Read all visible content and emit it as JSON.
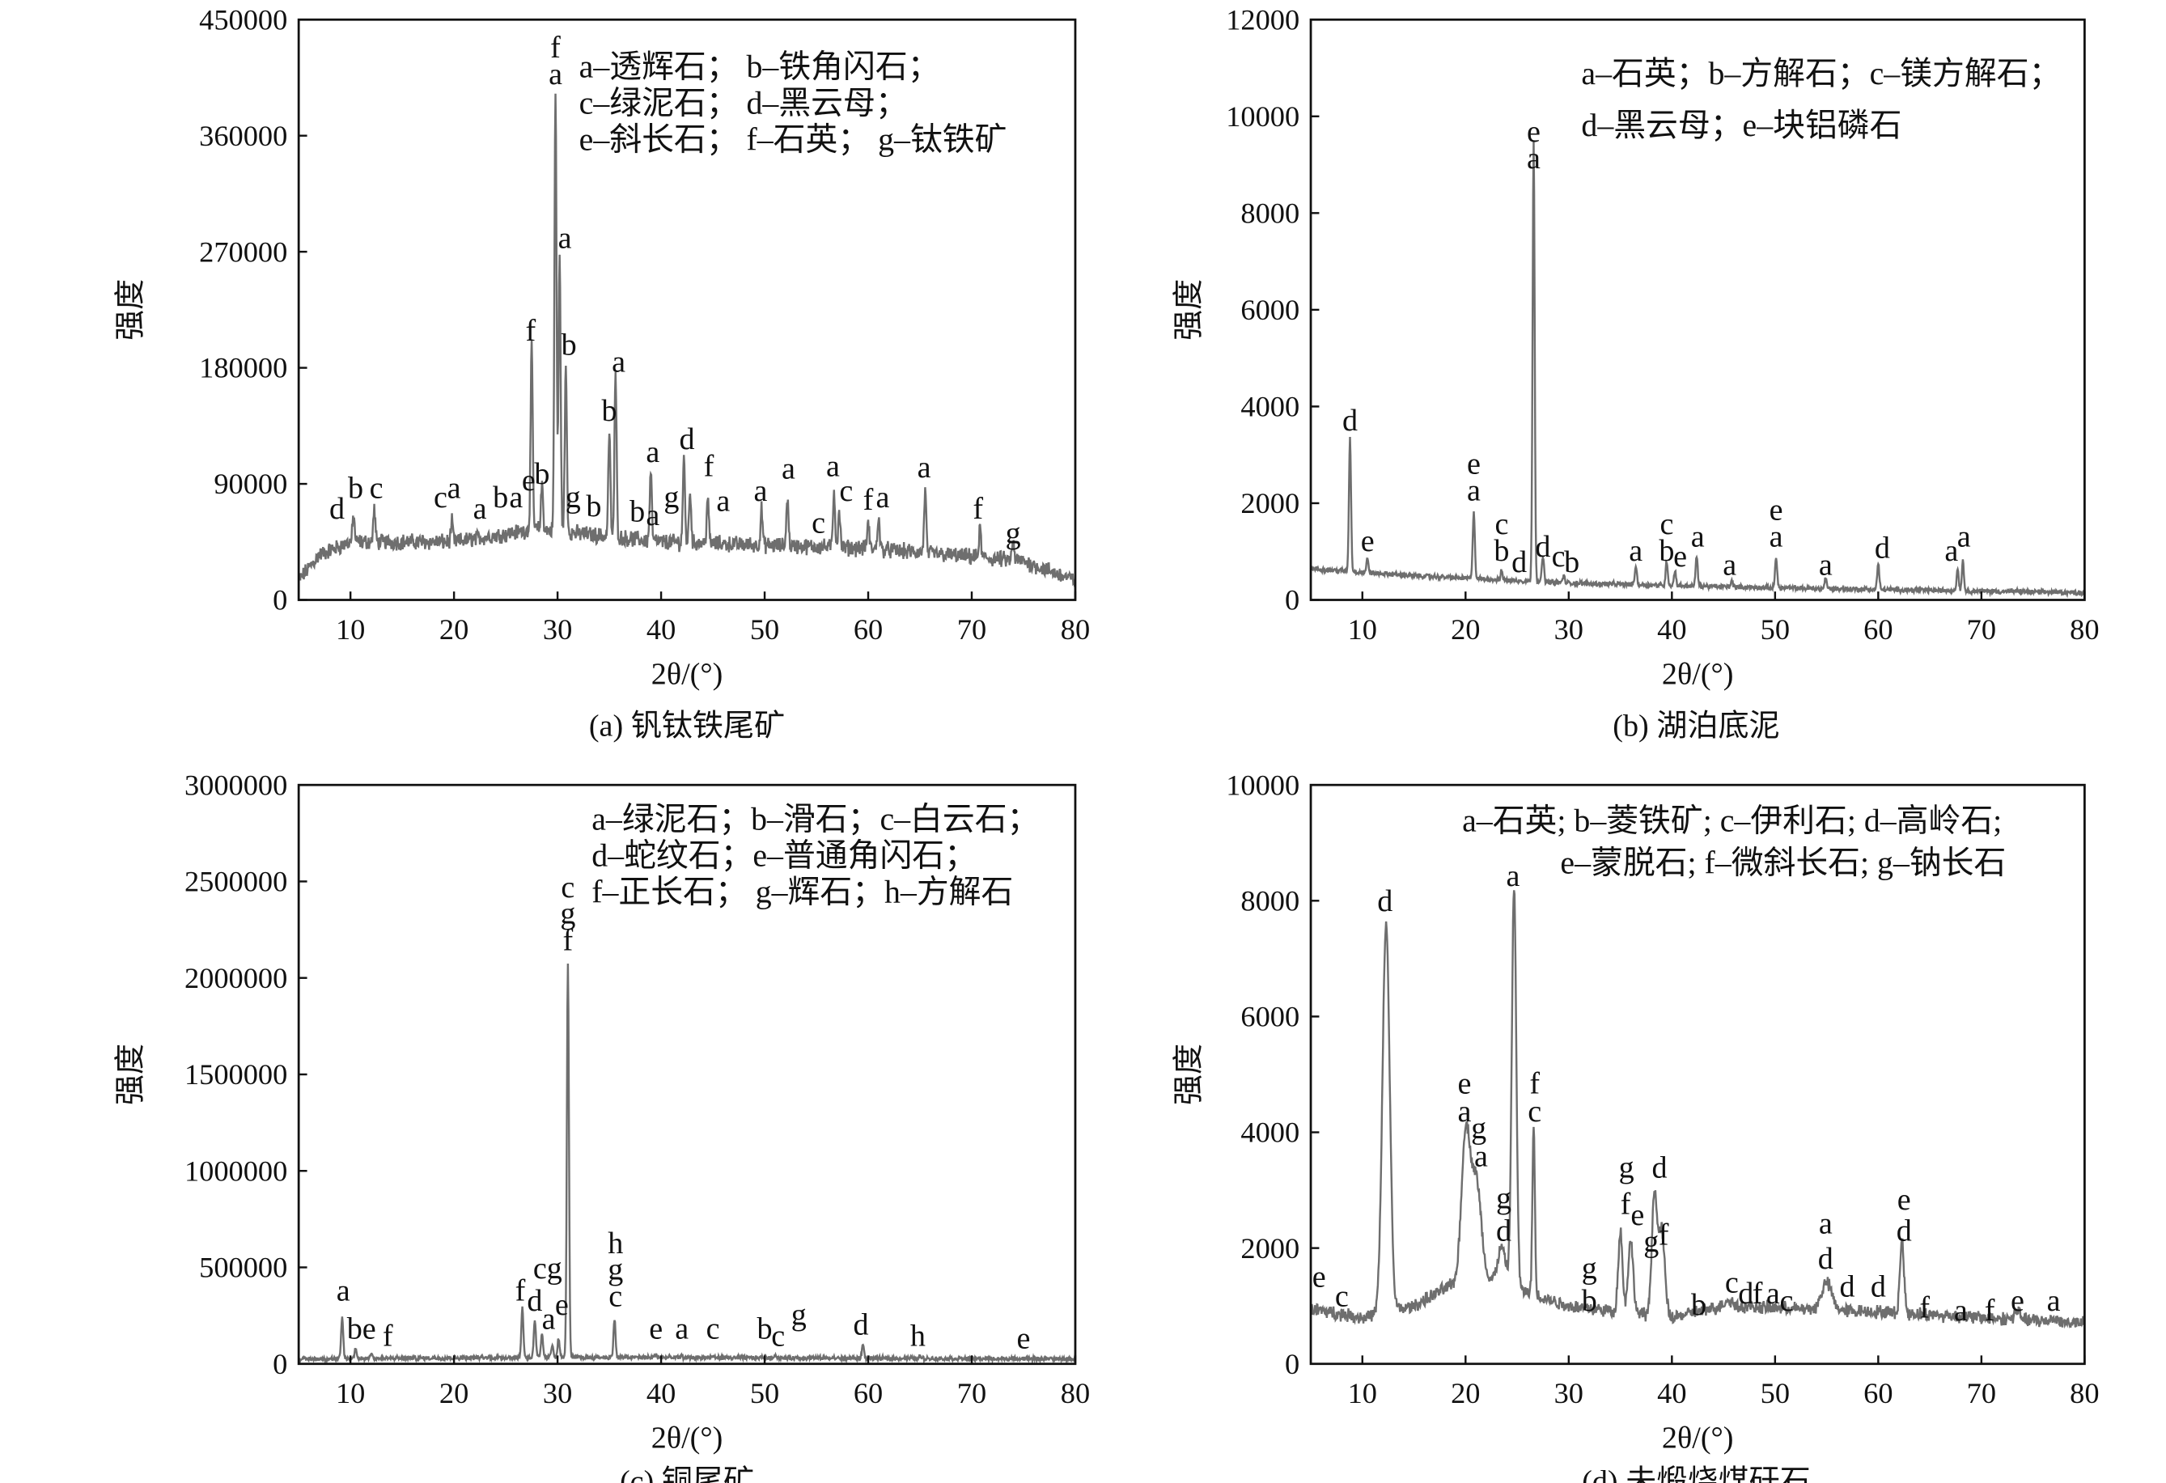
{
  "chart_data": [
    {
      "type": "line",
      "caption": "(a) 钒钛铁尾矿",
      "xlabel": "2θ/(°)",
      "ylabel": "强度",
      "xlim": [
        5,
        80
      ],
      "ylim": [
        0,
        450000
      ],
      "xticks": [
        10,
        20,
        30,
        40,
        50,
        60,
        70,
        80
      ],
      "yticks": [
        0,
        90000,
        180000,
        270000,
        360000,
        450000
      ],
      "legend": [
        "a–透辉石；  b–铁角闪石；",
        "c–绿泥石；  d–黑云母；",
        "e–斜长石；  f–石英；  g–钛铁矿"
      ],
      "line_color": "#6e6e6e",
      "baseline": [
        [
          5,
          15000
        ],
        [
          7,
          35000
        ],
        [
          10,
          45000
        ],
        [
          20,
          45000
        ],
        [
          28,
          55000
        ],
        [
          40,
          45000
        ],
        [
          60,
          40000
        ],
        [
          75,
          30000
        ],
        [
          80,
          15000
        ]
      ],
      "noise": 5000,
      "peaks": [
        [
          10.3,
          65000
        ],
        [
          12.3,
          70000
        ],
        [
          19.8,
          60000
        ],
        [
          27.5,
          195000
        ],
        [
          28.5,
          90000
        ],
        [
          29.8,
          395000
        ],
        [
          30.2,
          265000
        ],
        [
          30.8,
          180000
        ],
        [
          35.0,
          130000
        ],
        [
          35.6,
          175000
        ],
        [
          39.0,
          100000
        ],
        [
          42.2,
          110000
        ],
        [
          42.8,
          85000
        ],
        [
          44.5,
          80000
        ],
        [
          49.7,
          70000
        ],
        [
          52.2,
          80000
        ],
        [
          56.7,
          85000
        ],
        [
          57.2,
          70000
        ],
        [
          60.0,
          60000
        ],
        [
          61.0,
          65000
        ],
        [
          65.5,
          85000
        ],
        [
          70.8,
          55000
        ],
        [
          74.0,
          45000
        ]
      ],
      "labels": [
        [
          8.7,
          63000,
          "d"
        ],
        [
          10.5,
          79000,
          "b"
        ],
        [
          12.5,
          79000,
          "c"
        ],
        [
          18.7,
          72000,
          "c"
        ],
        [
          20,
          79000,
          "a"
        ],
        [
          22.5,
          63000,
          "a"
        ],
        [
          24.5,
          72000,
          "b"
        ],
        [
          26,
          72000,
          "a"
        ],
        [
          26.8,
          85000,
          "e"
        ],
        [
          27.4,
          201000,
          "f"
        ],
        [
          28.5,
          90000,
          "b"
        ],
        [
          29.8,
          400000,
          "fa"
        ],
        [
          30.7,
          273000,
          "a"
        ],
        [
          31.1,
          190000,
          "b"
        ],
        [
          31.5,
          72000,
          "g"
        ],
        [
          33.5,
          65000,
          "b"
        ],
        [
          35.0,
          139000,
          "b"
        ],
        [
          35.9,
          177000,
          "a"
        ],
        [
          37.7,
          61000,
          "b"
        ],
        [
          39.2,
          58000,
          "a"
        ],
        [
          39.2,
          107000,
          "a"
        ],
        [
          41.0,
          72000,
          "g"
        ],
        [
          42.5,
          117000,
          "d"
        ],
        [
          44.6,
          96000,
          "f"
        ],
        [
          46.0,
          69000,
          "a"
        ],
        [
          49.6,
          77000,
          "a"
        ],
        [
          52.3,
          94000,
          "a"
        ],
        [
          55.2,
          52000,
          "c"
        ],
        [
          56.6,
          96000,
          "a"
        ],
        [
          57.2,
          77000,
          "c"
        ],
        [
          60.0,
          70000,
          "f"
        ],
        [
          61.4,
          72000,
          "a"
        ],
        [
          65.4,
          95000,
          "a"
        ],
        [
          70.6,
          63000,
          "f"
        ],
        [
          74.0,
          44000,
          "g"
        ]
      ]
    },
    {
      "type": "line",
      "caption": "(b) 湖泊底泥",
      "xlabel": "2θ/(°)",
      "ylabel": "强度",
      "xlim": [
        5,
        80
      ],
      "ylim": [
        0,
        12000
      ],
      "xticks": [
        10,
        20,
        30,
        40,
        50,
        60,
        70,
        80
      ],
      "yticks": [
        0,
        2000,
        4000,
        6000,
        8000,
        10000,
        12000
      ],
      "legend": [
        "a–石英；b–方解石；c–镁方解石；",
        "d–黑云母；e–块铝磷石"
      ],
      "line_color": "#6e6e6e",
      "baseline": [
        [
          5,
          650
        ],
        [
          8,
          600
        ],
        [
          15,
          500
        ],
        [
          30,
          350
        ],
        [
          50,
          250
        ],
        [
          80,
          150
        ]
      ],
      "noise": 40,
      "peaks": [
        [
          8.8,
          3350
        ],
        [
          10.5,
          850
        ],
        [
          20.8,
          1850
        ],
        [
          23.5,
          600
        ],
        [
          26.6,
          9500
        ],
        [
          27.5,
          900
        ],
        [
          29.5,
          500
        ],
        [
          36.5,
          700
        ],
        [
          39.5,
          800
        ],
        [
          40.3,
          600
        ],
        [
          42.4,
          900
        ],
        [
          45.8,
          400
        ],
        [
          50.1,
          900
        ],
        [
          54.9,
          450
        ],
        [
          60.0,
          750
        ],
        [
          67.7,
          650
        ],
        [
          68.2,
          800
        ]
      ],
      "labels": [
        [
          8.8,
          3508,
          "d"
        ],
        [
          10.5,
          1015,
          "e"
        ],
        [
          20.8,
          2058,
          "ea"
        ],
        [
          23.5,
          812,
          "cb"
        ],
        [
          25.2,
          580,
          "d"
        ],
        [
          26.6,
          8929,
          "ea"
        ],
        [
          27.5,
          899,
          "d"
        ],
        [
          29.0,
          696,
          "c"
        ],
        [
          30.3,
          580,
          "b"
        ],
        [
          36.5,
          812,
          "a"
        ],
        [
          39.5,
          812,
          "cb"
        ],
        [
          40.4,
          696,
          "e"
        ],
        [
          42.5,
          1102,
          "a"
        ],
        [
          45.6,
          522,
          "a"
        ],
        [
          50.1,
          1102,
          "ea"
        ],
        [
          54.9,
          522,
          "a"
        ],
        [
          60.4,
          870,
          "d"
        ],
        [
          67.1,
          812,
          "a"
        ],
        [
          68.3,
          1102,
          "a"
        ]
      ]
    },
    {
      "type": "line",
      "caption": "(c) 铜尾矿",
      "xlabel": "2θ/(°)",
      "ylabel": "强度",
      "xlim": [
        5,
        80
      ],
      "ylim": [
        0,
        3000000
      ],
      "xticks": [
        10,
        20,
        30,
        40,
        50,
        60,
        70,
        80
      ],
      "yticks": [
        0,
        500000,
        1000000,
        1500000,
        2000000,
        2500000,
        3000000
      ],
      "legend": [
        "a–绿泥石；b–滑石；c–白云石；",
        "d–蛇纹石；e–普通角闪石；",
        "f–正长石；  g–辉石；h–方解石"
      ],
      "line_color": "#6e6e6e",
      "baseline": [
        [
          5,
          25000
        ],
        [
          30,
          35000
        ],
        [
          80,
          25000
        ]
      ],
      "noise": 9000,
      "peaks": [
        [
          9.2,
          240000
        ],
        [
          10.5,
          80000
        ],
        [
          12.0,
          60000
        ],
        [
          26.6,
          290000
        ],
        [
          27.8,
          230000
        ],
        [
          28.5,
          150000
        ],
        [
          29.5,
          100000
        ],
        [
          30.1,
          130000
        ],
        [
          31.0,
          2080000
        ],
        [
          35.5,
          230000
        ],
        [
          39.5,
          50000
        ],
        [
          42.0,
          40000
        ],
        [
          45.0,
          40000
        ],
        [
          50.0,
          40000
        ],
        [
          51.0,
          50000
        ],
        [
          59.5,
          100000
        ],
        [
          65.0,
          40000
        ],
        [
          75.0,
          30000
        ]
      ],
      "labels": [
        [
          9.3,
          327000,
          "a"
        ],
        [
          10.4,
          131000,
          "b"
        ],
        [
          11.8,
          131000,
          "e"
        ],
        [
          13.6,
          94000,
          "f"
        ],
        [
          26.4,
          327000,
          "f"
        ],
        [
          27.8,
          276000,
          "d"
        ],
        [
          28.3,
          443000,
          "c"
        ],
        [
          28.6,
          182000,
          "a"
        ],
        [
          29.7,
          443000,
          "g"
        ],
        [
          30.0,
          254000,
          "e"
        ],
        [
          31.0,
          2143000,
          "cgf"
        ],
        [
          35.6,
          298000,
          "hgc"
        ],
        [
          39.5,
          131000,
          "e"
        ],
        [
          42.0,
          131000,
          "a"
        ],
        [
          45.0,
          131000,
          "c"
        ],
        [
          50.0,
          131000,
          "b"
        ],
        [
          51.3,
          94000,
          "c"
        ],
        [
          53.3,
          203000,
          "g"
        ],
        [
          59.3,
          152000,
          "d"
        ],
        [
          64.8,
          94000,
          "h"
        ],
        [
          75.0,
          80000,
          "e"
        ]
      ]
    },
    {
      "type": "line",
      "caption": "(d) 未煅烧煤矸石",
      "xlabel": "2θ/(°)",
      "ylabel": "强度",
      "xlim": [
        5,
        80
      ],
      "ylim": [
        0,
        10000
      ],
      "xticks": [
        10,
        20,
        30,
        40,
        50,
        60,
        70,
        80
      ],
      "yticks": [
        0,
        2000,
        4000,
        6000,
        8000,
        10000
      ],
      "legend": [
        "a–石英; b–菱铁矿; c–伊利石; d–高岭石;",
        "e–蒙脱石; f–微斜长石; g–钠长石"
      ],
      "line_color": "#6e6e6e",
      "baseline": [
        [
          5,
          950
        ],
        [
          10,
          800
        ],
        [
          15,
          1000
        ],
        [
          20,
          1500
        ],
        [
          23,
          1400
        ],
        [
          30,
          1000
        ],
        [
          40,
          800
        ],
        [
          45,
          1000
        ],
        [
          60,
          900
        ],
        [
          80,
          700
        ]
      ],
      "noise": 90,
      "peaks": [
        [
          12.3,
          7600,
          0.35
        ],
        [
          20.0,
          3900,
          0.4
        ],
        [
          21.0,
          3200,
          0.5
        ],
        [
          23.5,
          2000,
          0.4
        ],
        [
          24.7,
          8200,
          0.22
        ],
        [
          26.6,
          4100,
          0.12
        ],
        [
          35.0,
          2300,
          0.2
        ],
        [
          36.0,
          2100,
          0.25
        ],
        [
          38.3,
          2900,
          0.25
        ],
        [
          39.0,
          2300,
          0.3
        ],
        [
          45.5,
          1100,
          0.4
        ],
        [
          55.0,
          1400,
          0.5
        ],
        [
          60.0,
          900,
          0.2
        ],
        [
          62.3,
          2100,
          0.2
        ],
        [
          73.5,
          900,
          0.3
        ],
        [
          77.0,
          800,
          0.3
        ]
      ],
      "labels": [
        [
          5.8,
          1332,
          "e"
        ],
        [
          8.0,
          993,
          "c"
        ],
        [
          12.2,
          7820,
          "d"
        ],
        [
          19.9,
          4673,
          "e"
        ],
        [
          19.9,
          4188,
          "a"
        ],
        [
          20.6,
          3898,
          "g"
        ],
        [
          21.5,
          3414,
          "a"
        ],
        [
          23.7,
          2687,
          "g"
        ],
        [
          23.7,
          2130,
          "d"
        ],
        [
          24.6,
          8256,
          "a"
        ],
        [
          26.7,
          4673,
          "f"
        ],
        [
          26.7,
          4188,
          "c"
        ],
        [
          32.0,
          1477,
          "g"
        ],
        [
          32.0,
          920,
          "b"
        ],
        [
          35.6,
          3220,
          "g"
        ],
        [
          35.5,
          2590,
          "f"
        ],
        [
          36.4,
          2397,
          "e"
        ],
        [
          38.0,
          1937,
          "g"
        ],
        [
          39.2,
          2058,
          "f"
        ],
        [
          38.8,
          3220,
          "d"
        ],
        [
          42.6,
          847,
          "b"
        ],
        [
          45.8,
          1235,
          "c"
        ],
        [
          46.9,
          1041,
          "d"
        ],
        [
          48.3,
          1041,
          "f"
        ],
        [
          49.8,
          1041,
          "a"
        ],
        [
          50.7,
          920,
          "c"
        ],
        [
          54.9,
          2252,
          "a"
        ],
        [
          54.9,
          1646,
          "d"
        ],
        [
          57.0,
          1162,
          "d"
        ],
        [
          60.0,
          1162,
          "d"
        ],
        [
          62.5,
          2663,
          "e"
        ],
        [
          62.5,
          2130,
          "d"
        ],
        [
          64.5,
          799,
          "f"
        ],
        [
          68.0,
          750,
          "a"
        ],
        [
          70.8,
          750,
          "f"
        ],
        [
          73.5,
          920,
          "e"
        ],
        [
          77.0,
          920,
          "a"
        ]
      ]
    }
  ]
}
